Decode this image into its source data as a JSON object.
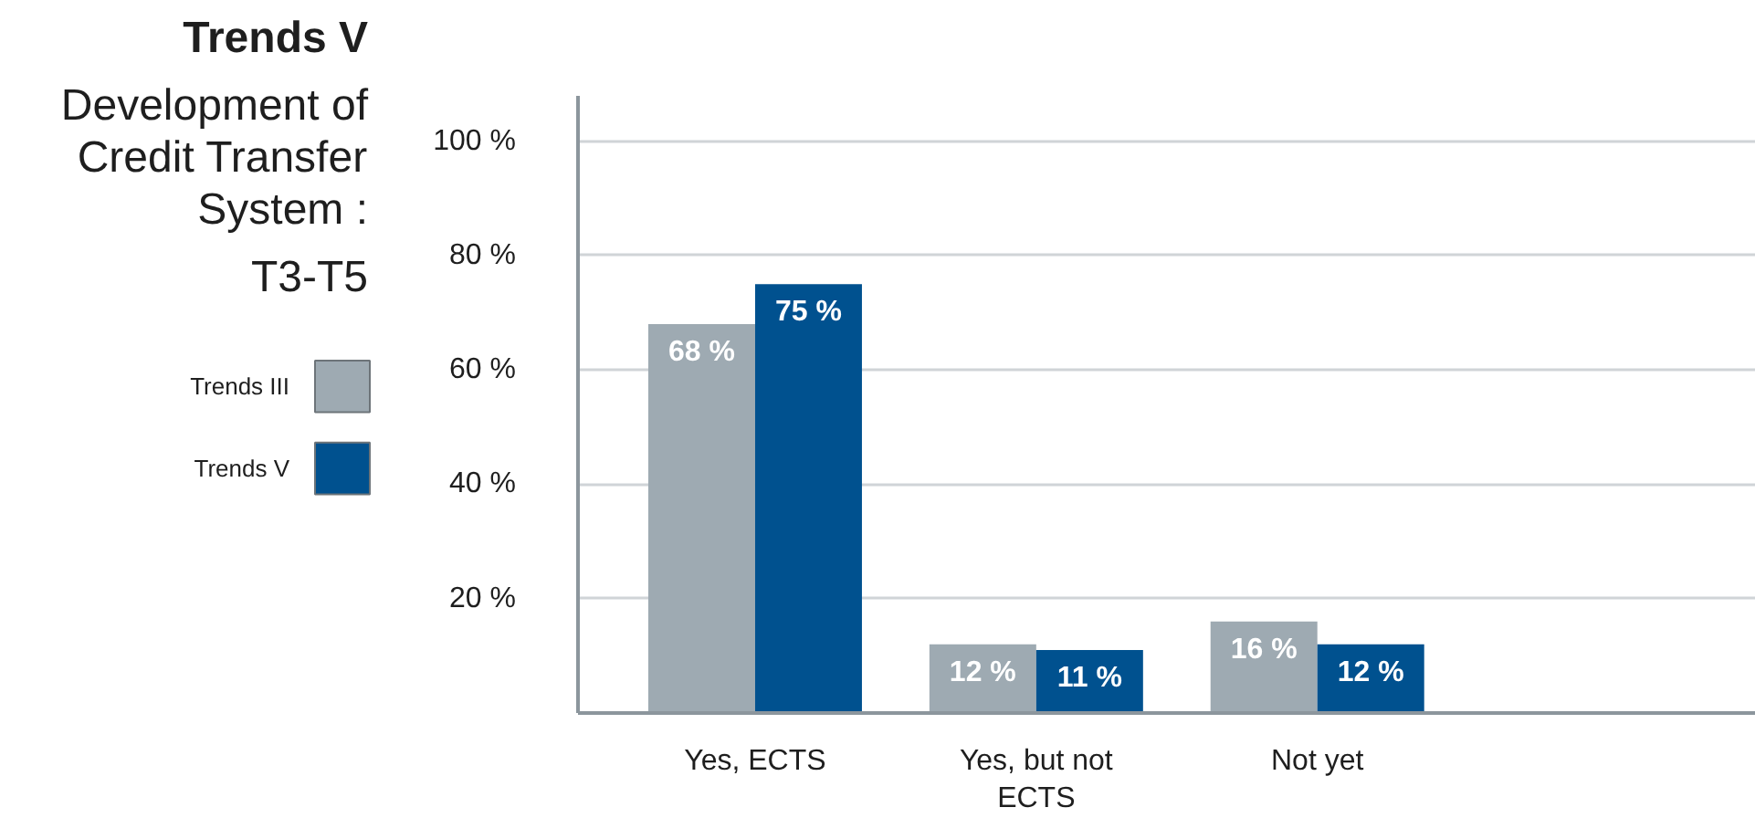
{
  "chart_data": {
    "type": "bar",
    "title": "Trends V",
    "subtitle": "Development of Credit Transfer System :\nT3-T5",
    "categories": [
      "Yes, ECTS",
      "Yes, but not ECTS",
      "Not yet"
    ],
    "series": [
      {
        "name": "Trends III",
        "color": "#9eaab2",
        "values": [
          68,
          12,
          16
        ],
        "value_labels": [
          "68 %",
          "12 %",
          "16 %"
        ]
      },
      {
        "name": "Trends V",
        "color": "#00518f",
        "values": [
          75,
          11,
          12
        ],
        "value_labels": [
          "75 %",
          "11 %",
          "12 %"
        ]
      }
    ],
    "ylim": [
      0,
      108
    ],
    "yticks": [
      {
        "value": 20,
        "label": "20 %"
      },
      {
        "value": 40,
        "label": "40 %"
      },
      {
        "value": 60,
        "label": "60 %"
      },
      {
        "value": 80,
        "label": "80 %"
      },
      {
        "value": 100,
        "label": "100 %"
      }
    ],
    "grid": "y",
    "legend": "left"
  }
}
